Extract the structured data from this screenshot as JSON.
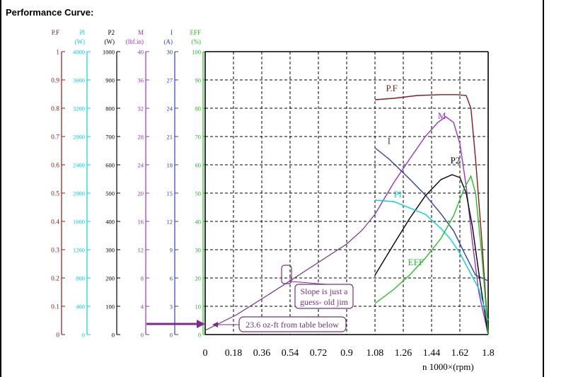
{
  "page": {
    "heading": "Performance Curve:"
  },
  "colors": {
    "pf": "#8b1a1a",
    "p1": "#00d4e0",
    "p2": "#000000",
    "m": "#9a32cd",
    "i": "#2f3fb0",
    "eff": "#22c022",
    "annotation": "#7b2d8e",
    "grid": "#000000"
  },
  "chart_data": {
    "type": "line",
    "title": "",
    "xlabel": "n   1000×(rpm)",
    "x_ticks": [
      "0",
      "0.18",
      "0.36",
      "0.54",
      "0.72",
      "0.9",
      "1.08",
      "1.26",
      "1.44",
      "1.62",
      "1.8"
    ],
    "xlim": [
      0,
      1.8
    ],
    "grid": true,
    "axes": [
      {
        "key": "pf",
        "name": "P.F",
        "unit": "",
        "ticks": [
          "0",
          "0.1",
          "0.2",
          "0.3",
          "0.4",
          "0.5",
          "0.6",
          "0.7",
          "0.8",
          "0.9",
          "1"
        ],
        "ylim": [
          0,
          1
        ]
      },
      {
        "key": "p1",
        "name": "Pl",
        "unit": "(W)",
        "ticks": [
          "0",
          "400",
          "800",
          "1200",
          "1600",
          "2000",
          "2400",
          "2800",
          "3200",
          "3600",
          "4000"
        ],
        "ylim": [
          0,
          4000
        ]
      },
      {
        "key": "p2",
        "name": "P2",
        "unit": "(W)",
        "ticks": [
          "0",
          "100",
          "200",
          "300",
          "400",
          "500",
          "600",
          "700",
          "800",
          "900",
          "1000"
        ],
        "ylim": [
          0,
          1000
        ]
      },
      {
        "key": "m",
        "name": "M",
        "unit": "(lbf.in)",
        "ticks": [
          "0",
          "4",
          "8",
          "12",
          "16",
          "20",
          "24",
          "28",
          "32",
          "36",
          "40"
        ],
        "ylim": [
          0,
          40
        ]
      },
      {
        "key": "i",
        "name": "I",
        "unit": "(A)",
        "ticks": [
          "0",
          "3",
          "6",
          "9",
          "12",
          "15",
          "18",
          "21",
          "24",
          "27",
          "30"
        ],
        "ylim": [
          0,
          30
        ]
      },
      {
        "key": "eff",
        "name": "EFF",
        "unit": "(%)",
        "ticks": [
          "0",
          "10",
          "20",
          "30",
          "40",
          "50",
          "60",
          "70",
          "80",
          "90",
          "100"
        ],
        "ylim": [
          0,
          100
        ]
      }
    ],
    "series": [
      {
        "key": "pf",
        "name": "P.F",
        "label_x": 1.15,
        "label_y": 0.86,
        "x": [
          1.08,
          1.2,
          1.35,
          1.5,
          1.6,
          1.66,
          1.69,
          1.72,
          1.76,
          1.8
        ],
        "y": [
          0.83,
          0.835,
          0.845,
          0.848,
          0.848,
          0.845,
          0.8,
          0.62,
          0.33,
          0.0
        ]
      },
      {
        "key": "m",
        "name": "M",
        "label_x": 1.48,
        "label_y": 30.5,
        "x": [
          1.08,
          1.2,
          1.3,
          1.4,
          1.48,
          1.53,
          1.58,
          1.62,
          1.66,
          1.7,
          1.74,
          1.8
        ],
        "y": [
          17.0,
          21.5,
          24.8,
          28.0,
          30.0,
          30.8,
          30.0,
          27.0,
          21.0,
          13.0,
          6.0,
          0.0
        ]
      },
      {
        "key": "i",
        "name": "I",
        "label_x": 1.16,
        "label_y": 20.2,
        "x": [
          1.08,
          1.17,
          1.3,
          1.4,
          1.5,
          1.58,
          1.65,
          1.72,
          1.8
        ],
        "y": [
          19.8,
          18.6,
          16.5,
          14.8,
          12.8,
          11.0,
          8.6,
          6.3,
          5.7
        ]
      },
      {
        "key": "p2",
        "name": "P2",
        "label_x": 1.56,
        "label_y": 605,
        "x": [
          1.08,
          1.2,
          1.3,
          1.4,
          1.5,
          1.57,
          1.62,
          1.66,
          1.7,
          1.75,
          1.8
        ],
        "y": [
          210,
          320,
          410,
          490,
          548,
          565,
          555,
          500,
          380,
          180,
          0
        ]
      },
      {
        "key": "p1",
        "name": "Pl",
        "label_x": 1.2,
        "label_y": 1940,
        "x": [
          1.08,
          1.2,
          1.3,
          1.4,
          1.5,
          1.56,
          1.62,
          1.68,
          1.74,
          1.8
        ],
        "y": [
          1900,
          1880,
          1790,
          1700,
          1500,
          1350,
          1150,
          900,
          650,
          200
        ]
      },
      {
        "key": "eff",
        "name": "EFF",
        "label_x": 1.29,
        "label_y": 24.5,
        "x": [
          1.08,
          1.2,
          1.3,
          1.4,
          1.5,
          1.58,
          1.65,
          1.69,
          1.72,
          1.76,
          1.8
        ],
        "y": [
          11,
          16,
          21,
          27,
          34,
          42,
          52,
          56,
          50,
          28,
          0
        ]
      },
      {
        "key": "m",
        "name": "",
        "annotation": true,
        "x": [
          0.0,
          0.2,
          0.4,
          0.54,
          0.72,
          0.9,
          1.0,
          1.08
        ],
        "y": [
          0.6,
          2.8,
          5.6,
          7.6,
          10.2,
          12.8,
          14.8,
          17.0
        ]
      }
    ],
    "annotations": [
      {
        "text": "Slope is just a guess- old jim",
        "lines": [
          "Slope is just a",
          "guess- old jim"
        ]
      },
      {
        "text": "23.6 oz-ft from table below"
      }
    ]
  }
}
